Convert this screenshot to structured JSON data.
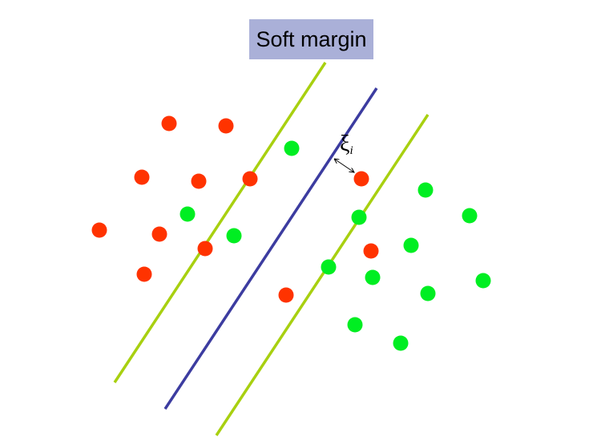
{
  "title": "Soft margin",
  "slack_symbol": "ξ",
  "slack_subscript": "i",
  "colors": {
    "title_background": "#aab0d8",
    "class_positive": "#ff3300",
    "class_negative": "#00ee22",
    "decision_boundary": "#3c3ca0",
    "margin_lines": "#a8d010"
  },
  "icons": {
    "slack_arrow": "double-headed-arrow"
  }
}
